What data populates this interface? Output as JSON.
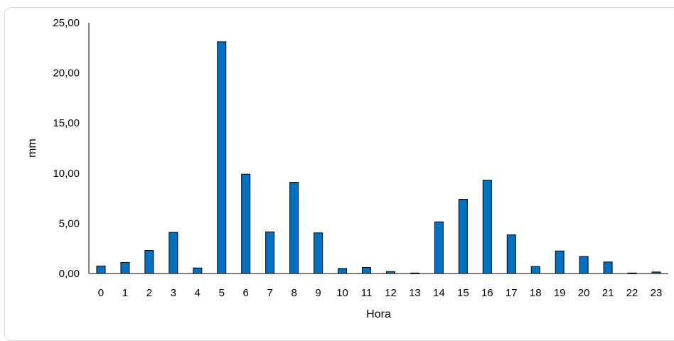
{
  "chart_data": {
    "type": "bar",
    "title": "",
    "xlabel": "Hora",
    "ylabel": "mm",
    "ylim": [
      0,
      25
    ],
    "grid": false,
    "legend": "none",
    "bar_color": "#0070C0",
    "bar_edge_color": "#000000",
    "categories": [
      "0",
      "1",
      "2",
      "3",
      "4",
      "5",
      "6",
      "7",
      "8",
      "9",
      "10",
      "11",
      "12",
      "13",
      "14",
      "15",
      "16",
      "17",
      "18",
      "19",
      "20",
      "21",
      "22",
      "23"
    ],
    "series": [
      {
        "values": [
          0.75,
          1.1,
          2.3,
          4.1,
          0.55,
          23.1,
          9.9,
          4.15,
          9.1,
          4.05,
          0.5,
          0.6,
          0.2,
          0.05,
          5.15,
          7.4,
          9.3,
          3.85,
          0.7,
          2.25,
          1.7,
          1.15,
          0.05,
          0.15
        ]
      }
    ],
    "yticks": [
      "0,00",
      "5,00",
      "10,00",
      "15,00",
      "20,00",
      "25,00"
    ],
    "ytick_values": [
      0,
      5,
      10,
      15,
      20,
      25
    ]
  }
}
